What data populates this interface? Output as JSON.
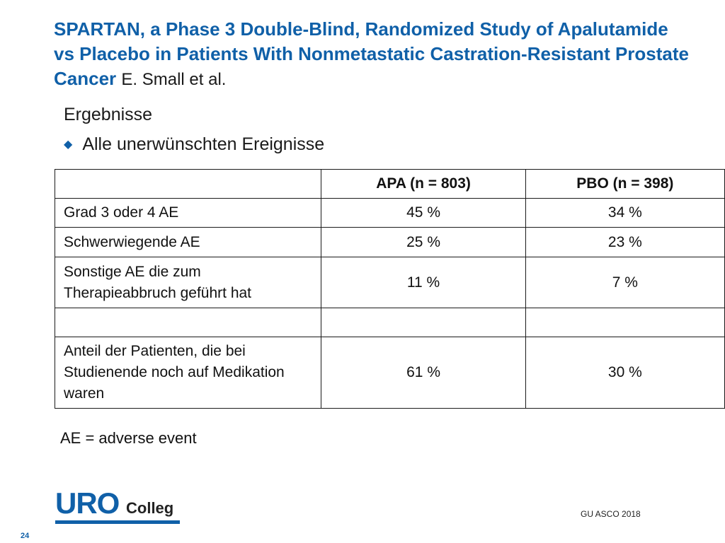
{
  "slide": {
    "title": "SPARTAN, a Phase 3 Double-Blind, Randomized Study of Apalutamide vs Placebo in Patients With Nonmetastatic Castration-Resistant Prostate Cancer",
    "author": "E. Small et al.",
    "subhead": "Ergebnisse",
    "bullet": "Alle unerwünschten Ereignisse",
    "footnote": "AE = adverse event",
    "source": "GU ASCO 2018",
    "page_number": "24",
    "logo": {
      "uro": "URO",
      "colleg": "Colleg"
    }
  },
  "table": {
    "headers": [
      "",
      "APA (n = 803)",
      "PBO (n = 398)"
    ],
    "rows": [
      {
        "label": "Grad 3 oder 4 AE",
        "apa": "45 %",
        "pbo": "34 %"
      },
      {
        "label": "Schwerwiegende AE",
        "apa": "25 %",
        "pbo": "23 %"
      },
      {
        "label": "Sonstige AE die zum Therapieabbruch geführt hat",
        "apa": "11 %",
        "pbo": "7 %"
      },
      {
        "label": "",
        "apa": "",
        "pbo": ""
      },
      {
        "label": "Anteil der Patienten, die bei Studienende noch auf Medikation waren",
        "apa": "61 %",
        "pbo": "30 %"
      }
    ]
  },
  "colors": {
    "accent": "#1060a8"
  }
}
